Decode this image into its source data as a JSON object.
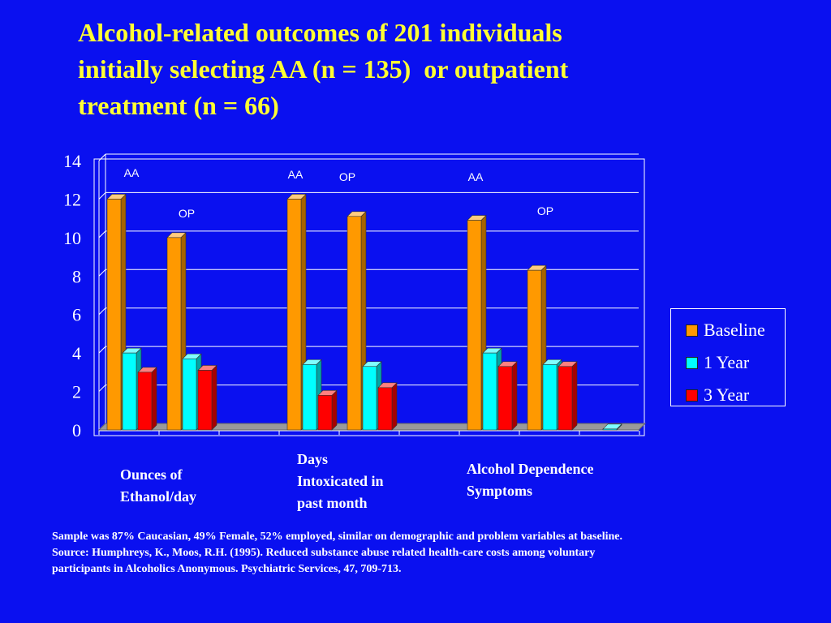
{
  "slide": {
    "title_lines": [
      "Alcohol-related outcomes of 201 individuals",
      "initially selecting AA (n = 135)  or outpatient",
      "treatment (n = 66)"
    ],
    "group_labels": [
      {
        "lines": [
          "Ounces of",
          "Ethanol/day"
        ]
      },
      {
        "lines": [
          "Days",
          "Intoxicated in",
          "past month"
        ]
      },
      {
        "lines": [
          "Alcohol Dependence",
          "Symptoms"
        ]
      }
    ],
    "footnote_lines": [
      "Sample was 87% Caucasian, 49% Female, 52% employed, similar on demographic and problem variables at baseline.",
      "Source: Humphreys, K., Moos, R.H. (1995). Reduced substance abuse related health-care costs among voluntary",
      "participants in Alcoholics Anonymous. Psychiatric Services, 47, 709-713."
    ]
  },
  "colors": {
    "background": "#0a10f0",
    "title": "#ffff33",
    "baseline": "#ff9900",
    "year1": "#00ffff",
    "year3": "#ff0000"
  },
  "chart_data": {
    "type": "bar",
    "ylim": [
      0,
      14
    ],
    "yticks": [
      "0",
      "2",
      "4",
      "6",
      "8",
      "10",
      "12",
      "14"
    ],
    "grid": true,
    "legend_position": "right",
    "categories": [
      "",
      "",
      "",
      "",
      "",
      "",
      "",
      "",
      ""
    ],
    "series": [
      {
        "name": "Baseline",
        "values": [
          12,
          10,
          0,
          12,
          11.1,
          0,
          10.9,
          8.3,
          0
        ]
      },
      {
        "name": "1 Year",
        "values": [
          4,
          3.7,
          0,
          3.4,
          3.3,
          0,
          4,
          3.4,
          0.05
        ]
      },
      {
        "name": "3 Year",
        "values": [
          3,
          3.1,
          0,
          1.8,
          2.2,
          0,
          3.3,
          3.3,
          0
        ]
      }
    ],
    "annotations": [
      {
        "text": "AA",
        "category_index": 0
      },
      {
        "text": "OP",
        "category_index": 1
      },
      {
        "text": "AA",
        "category_index": 3
      },
      {
        "text": "OP",
        "category_index": 4
      },
      {
        "text": "AA",
        "category_index": 6
      },
      {
        "text": "OP",
        "category_index": 7
      }
    ]
  }
}
